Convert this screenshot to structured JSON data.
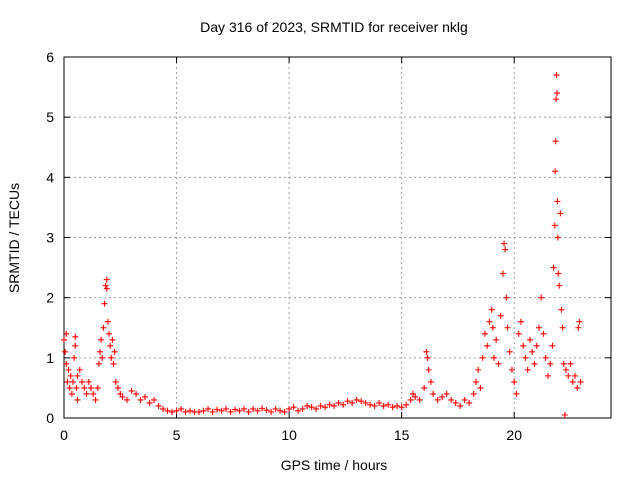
{
  "chart_data": {
    "type": "scatter",
    "title": "Day 316 of 2023, SRMTID for receiver nklg",
    "xlabel": "GPS time / hours",
    "ylabel": "SRMTID / TECUs",
    "xlim": [
      0,
      24.3
    ],
    "ylim": [
      0,
      6
    ],
    "xticks": [
      0,
      5,
      10,
      15,
      20
    ],
    "yticks": [
      0,
      1,
      2,
      3,
      4,
      5,
      6
    ],
    "grid": true,
    "marker": "+",
    "color": "#ff0000",
    "series": [
      {
        "name": "SRMTID",
        "points": [
          [
            0.0,
            1.3
          ],
          [
            0.05,
            1.1
          ],
          [
            0.1,
            0.9
          ],
          [
            0.1,
            1.4
          ],
          [
            0.15,
            0.6
          ],
          [
            0.2,
            0.8
          ],
          [
            0.25,
            0.5
          ],
          [
            0.3,
            0.7
          ],
          [
            0.35,
            0.4
          ],
          [
            0.4,
            0.6
          ],
          [
            0.45,
            1.0
          ],
          [
            0.5,
            1.35
          ],
          [
            0.5,
            1.2
          ],
          [
            0.55,
            0.5
          ],
          [
            0.6,
            0.7
          ],
          [
            0.6,
            0.3
          ],
          [
            0.7,
            0.8
          ],
          [
            0.8,
            0.6
          ],
          [
            0.9,
            0.5
          ],
          [
            1.0,
            0.4
          ],
          [
            1.1,
            0.6
          ],
          [
            1.2,
            0.5
          ],
          [
            1.3,
            0.4
          ],
          [
            1.4,
            0.3
          ],
          [
            1.5,
            0.5
          ],
          [
            1.55,
            0.9
          ],
          [
            1.6,
            1.1
          ],
          [
            1.65,
            1.3
          ],
          [
            1.7,
            1.0
          ],
          [
            1.75,
            1.5
          ],
          [
            1.8,
            1.9
          ],
          [
            1.85,
            2.2
          ],
          [
            1.9,
            2.3
          ],
          [
            1.9,
            2.15
          ],
          [
            1.95,
            1.6
          ],
          [
            2.0,
            1.4
          ],
          [
            2.05,
            1.2
          ],
          [
            2.1,
            1.0
          ],
          [
            2.15,
            1.3
          ],
          [
            2.2,
            0.9
          ],
          [
            2.25,
            1.1
          ],
          [
            2.3,
            0.6
          ],
          [
            2.4,
            0.5
          ],
          [
            2.5,
            0.4
          ],
          [
            2.6,
            0.35
          ],
          [
            2.8,
            0.3
          ],
          [
            3.0,
            0.45
          ],
          [
            3.2,
            0.4
          ],
          [
            3.4,
            0.3
          ],
          [
            3.6,
            0.35
          ],
          [
            3.8,
            0.25
          ],
          [
            4.0,
            0.3
          ],
          [
            4.2,
            0.2
          ],
          [
            4.4,
            0.15
          ],
          [
            4.6,
            0.12
          ],
          [
            4.8,
            0.1
          ],
          [
            5.0,
            0.12
          ],
          [
            5.2,
            0.15
          ],
          [
            5.4,
            0.1
          ],
          [
            5.6,
            0.12
          ],
          [
            5.8,
            0.1
          ],
          [
            6.0,
            0.1
          ],
          [
            6.2,
            0.12
          ],
          [
            6.4,
            0.15
          ],
          [
            6.6,
            0.1
          ],
          [
            6.8,
            0.14
          ],
          [
            7.0,
            0.12
          ],
          [
            7.2,
            0.15
          ],
          [
            7.4,
            0.1
          ],
          [
            7.6,
            0.14
          ],
          [
            7.8,
            0.12
          ],
          [
            8.0,
            0.15
          ],
          [
            8.2,
            0.1
          ],
          [
            8.4,
            0.15
          ],
          [
            8.6,
            0.12
          ],
          [
            8.8,
            0.16
          ],
          [
            9.0,
            0.13
          ],
          [
            9.2,
            0.1
          ],
          [
            9.4,
            0.15
          ],
          [
            9.6,
            0.12
          ],
          [
            9.8,
            0.1
          ],
          [
            10.0,
            0.15
          ],
          [
            10.2,
            0.18
          ],
          [
            10.4,
            0.12
          ],
          [
            10.6,
            0.15
          ],
          [
            10.8,
            0.2
          ],
          [
            11.0,
            0.18
          ],
          [
            11.2,
            0.15
          ],
          [
            11.4,
            0.2
          ],
          [
            11.6,
            0.18
          ],
          [
            11.8,
            0.22
          ],
          [
            12.0,
            0.2
          ],
          [
            12.2,
            0.25
          ],
          [
            12.4,
            0.22
          ],
          [
            12.6,
            0.28
          ],
          [
            12.8,
            0.25
          ],
          [
            13.0,
            0.3
          ],
          [
            13.2,
            0.28
          ],
          [
            13.4,
            0.25
          ],
          [
            13.6,
            0.22
          ],
          [
            13.8,
            0.2
          ],
          [
            14.0,
            0.25
          ],
          [
            14.2,
            0.2
          ],
          [
            14.4,
            0.22
          ],
          [
            14.6,
            0.18
          ],
          [
            14.8,
            0.2
          ],
          [
            15.0,
            0.18
          ],
          [
            15.2,
            0.22
          ],
          [
            15.4,
            0.3
          ],
          [
            15.5,
            0.4
          ],
          [
            15.6,
            0.35
          ],
          [
            15.8,
            0.3
          ],
          [
            16.0,
            0.5
          ],
          [
            16.1,
            1.1
          ],
          [
            16.15,
            1.0
          ],
          [
            16.2,
            0.8
          ],
          [
            16.3,
            0.6
          ],
          [
            16.4,
            0.4
          ],
          [
            16.6,
            0.3
          ],
          [
            16.8,
            0.35
          ],
          [
            17.0,
            0.4
          ],
          [
            17.2,
            0.3
          ],
          [
            17.4,
            0.25
          ],
          [
            17.6,
            0.2
          ],
          [
            17.8,
            0.3
          ],
          [
            18.0,
            0.25
          ],
          [
            18.2,
            0.4
          ],
          [
            18.3,
            0.6
          ],
          [
            18.4,
            0.8
          ],
          [
            18.5,
            0.5
          ],
          [
            18.6,
            1.0
          ],
          [
            18.7,
            1.4
          ],
          [
            18.8,
            1.2
          ],
          [
            18.9,
            1.6
          ],
          [
            19.0,
            1.8
          ],
          [
            19.05,
            1.5
          ],
          [
            19.1,
            1.0
          ],
          [
            19.2,
            1.3
          ],
          [
            19.3,
            0.9
          ],
          [
            19.4,
            1.7
          ],
          [
            19.5,
            2.4
          ],
          [
            19.55,
            2.9
          ],
          [
            19.6,
            2.8
          ],
          [
            19.65,
            2.0
          ],
          [
            19.7,
            1.5
          ],
          [
            19.8,
            1.1
          ],
          [
            19.9,
            0.8
          ],
          [
            20.0,
            0.6
          ],
          [
            20.1,
            0.4
          ],
          [
            20.2,
            1.4
          ],
          [
            20.3,
            1.6
          ],
          [
            20.4,
            1.2
          ],
          [
            20.5,
            1.0
          ],
          [
            20.6,
            0.8
          ],
          [
            20.7,
            1.3
          ],
          [
            20.8,
            1.1
          ],
          [
            20.9,
            0.9
          ],
          [
            21.0,
            1.2
          ],
          [
            21.1,
            1.5
          ],
          [
            21.2,
            2.0
          ],
          [
            21.3,
            1.4
          ],
          [
            21.4,
            1.0
          ],
          [
            21.5,
            0.7
          ],
          [
            21.6,
            0.9
          ],
          [
            21.7,
            1.2
          ],
          [
            21.75,
            2.5
          ],
          [
            21.8,
            3.2
          ],
          [
            21.82,
            4.1
          ],
          [
            21.84,
            4.6
          ],
          [
            21.86,
            5.3
          ],
          [
            21.88,
            5.7
          ],
          [
            21.9,
            5.4
          ],
          [
            21.92,
            3.6
          ],
          [
            21.94,
            3.0
          ],
          [
            21.96,
            2.4
          ],
          [
            22.0,
            2.2
          ],
          [
            22.05,
            3.4
          ],
          [
            22.1,
            1.8
          ],
          [
            22.15,
            1.5
          ],
          [
            22.2,
            0.9
          ],
          [
            22.25,
            0.05
          ],
          [
            22.3,
            0.8
          ],
          [
            22.4,
            0.7
          ],
          [
            22.5,
            0.9
          ],
          [
            22.6,
            0.6
          ],
          [
            22.7,
            0.7
          ],
          [
            22.8,
            0.5
          ],
          [
            22.85,
            1.5
          ],
          [
            22.9,
            1.6
          ],
          [
            22.95,
            0.6
          ]
        ]
      }
    ]
  }
}
